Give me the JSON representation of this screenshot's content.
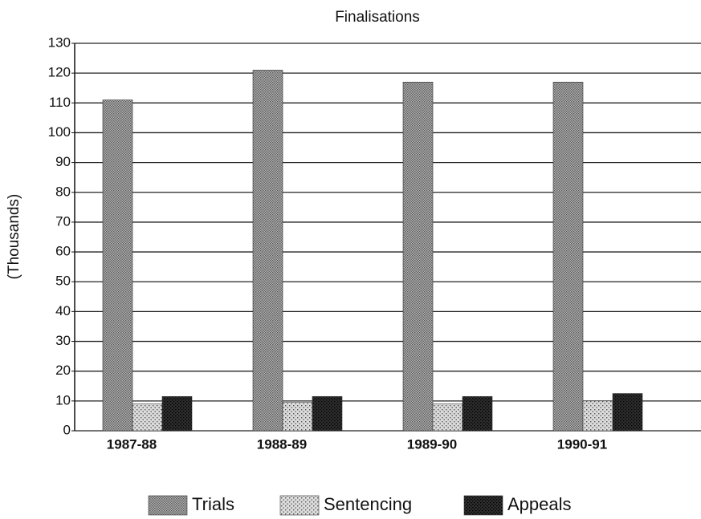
{
  "chart_data": {
    "type": "bar",
    "title": "Finalisations",
    "y_label": "(Thousands)",
    "categories": [
      "1987-88",
      "1988-89",
      "1989-90",
      "1990-91"
    ],
    "series": [
      {
        "name": "Trials",
        "color": "#b4b4b4",
        "values": [
          111,
          121,
          117,
          117
        ]
      },
      {
        "name": "Sentencing",
        "color": "#dcdcdc",
        "values": [
          9,
          9.5,
          9,
          10
        ]
      },
      {
        "name": "Appeals",
        "color": "#2e2e2e",
        "values": [
          11.5,
          11.5,
          11.5,
          12.5
        ]
      }
    ],
    "ylim": [
      0,
      130
    ],
    "yticks": [
      0,
      10,
      20,
      30,
      40,
      50,
      60,
      70,
      80,
      90,
      100,
      110,
      120,
      130
    ],
    "grid": true,
    "legend": "bottom"
  }
}
